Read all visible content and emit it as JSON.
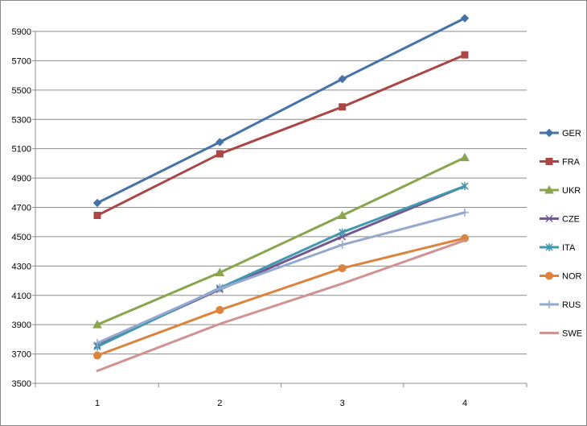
{
  "chart_data": {
    "type": "line",
    "title": "",
    "xlabel": "",
    "ylabel": "",
    "x": [
      1,
      2,
      3,
      4
    ],
    "x_tick_labels": [
      "1",
      "2",
      "3",
      "4"
    ],
    "ylim": [
      3500,
      5900
    ],
    "y_ticks": [
      3500,
      3700,
      3900,
      4100,
      4300,
      4500,
      4700,
      4900,
      5100,
      5300,
      5500,
      5700,
      5900
    ],
    "y_tick_labels": [
      "3500",
      "3700",
      "3900",
      "4100",
      "4300",
      "4500",
      "4700",
      "4900",
      "5100",
      "5300",
      "5500",
      "5700",
      "5900"
    ],
    "grid": "horizontal",
    "legend_position": "right",
    "series": [
      {
        "name": "GER",
        "values": [
          4730,
          5145,
          5575,
          5990
        ],
        "color": "#4572A7",
        "marker": "diamond"
      },
      {
        "name": "FRA",
        "values": [
          4645,
          5065,
          5385,
          5740
        ],
        "color": "#AA4643",
        "marker": "square"
      },
      {
        "name": "UKR",
        "values": [
          3900,
          4255,
          4645,
          5040
        ],
        "color": "#89A54E",
        "marker": "triangle"
      },
      {
        "name": "CZE",
        "values": [
          3760,
          4140,
          4500,
          4845
        ],
        "color": "#71588F",
        "marker": "x"
      },
      {
        "name": "ITA",
        "values": [
          3750,
          4150,
          4530,
          4845
        ],
        "color": "#4198AF",
        "marker": "star"
      },
      {
        "name": "NOR",
        "values": [
          3690,
          4000,
          4285,
          4490
        ],
        "color": "#DB843D",
        "marker": "circle"
      },
      {
        "name": "RUS",
        "values": [
          3775,
          4145,
          4445,
          4665
        ],
        "color": "#93A9CF",
        "marker": "plus"
      },
      {
        "name": "SWE",
        "values": [
          3585,
          3905,
          4180,
          4475
        ],
        "color": "#D19392",
        "marker": "none"
      }
    ]
  }
}
